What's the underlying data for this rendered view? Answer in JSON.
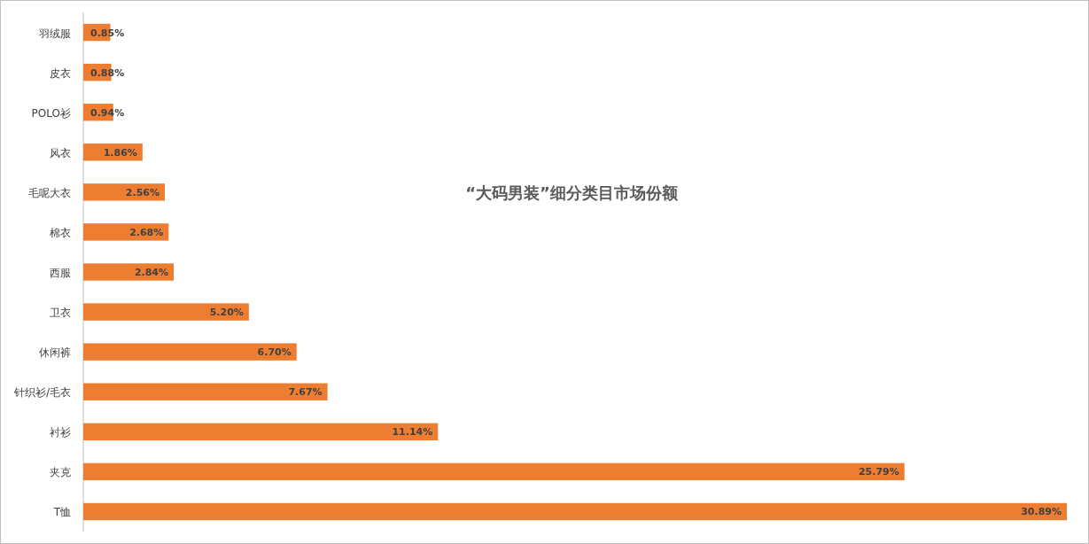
{
  "chart_data": {
    "type": "bar",
    "orientation": "horizontal",
    "title": "“大码男装”细分类目市场份额",
    "color": "#ed7d31",
    "categories": [
      "羽绒服",
      "皮衣",
      "POLO衫",
      "风衣",
      "毛呢大衣",
      "棉衣",
      "西服",
      "卫衣",
      "休闲裤",
      "针织衫/毛衣",
      "衬衫",
      "夹克",
      "T恤"
    ],
    "values": [
      0.85,
      0.88,
      0.94,
      1.86,
      2.56,
      2.68,
      2.84,
      5.2,
      6.7,
      7.67,
      11.14,
      25.79,
      30.89
    ],
    "value_labels": [
      "0.85%",
      "0.88%",
      "0.94%",
      "1.86%",
      "2.56%",
      "2.68%",
      "2.84%",
      "5.20%",
      "6.70%",
      "7.67%",
      "11.14%",
      "25.79%",
      "30.89%"
    ]
  }
}
